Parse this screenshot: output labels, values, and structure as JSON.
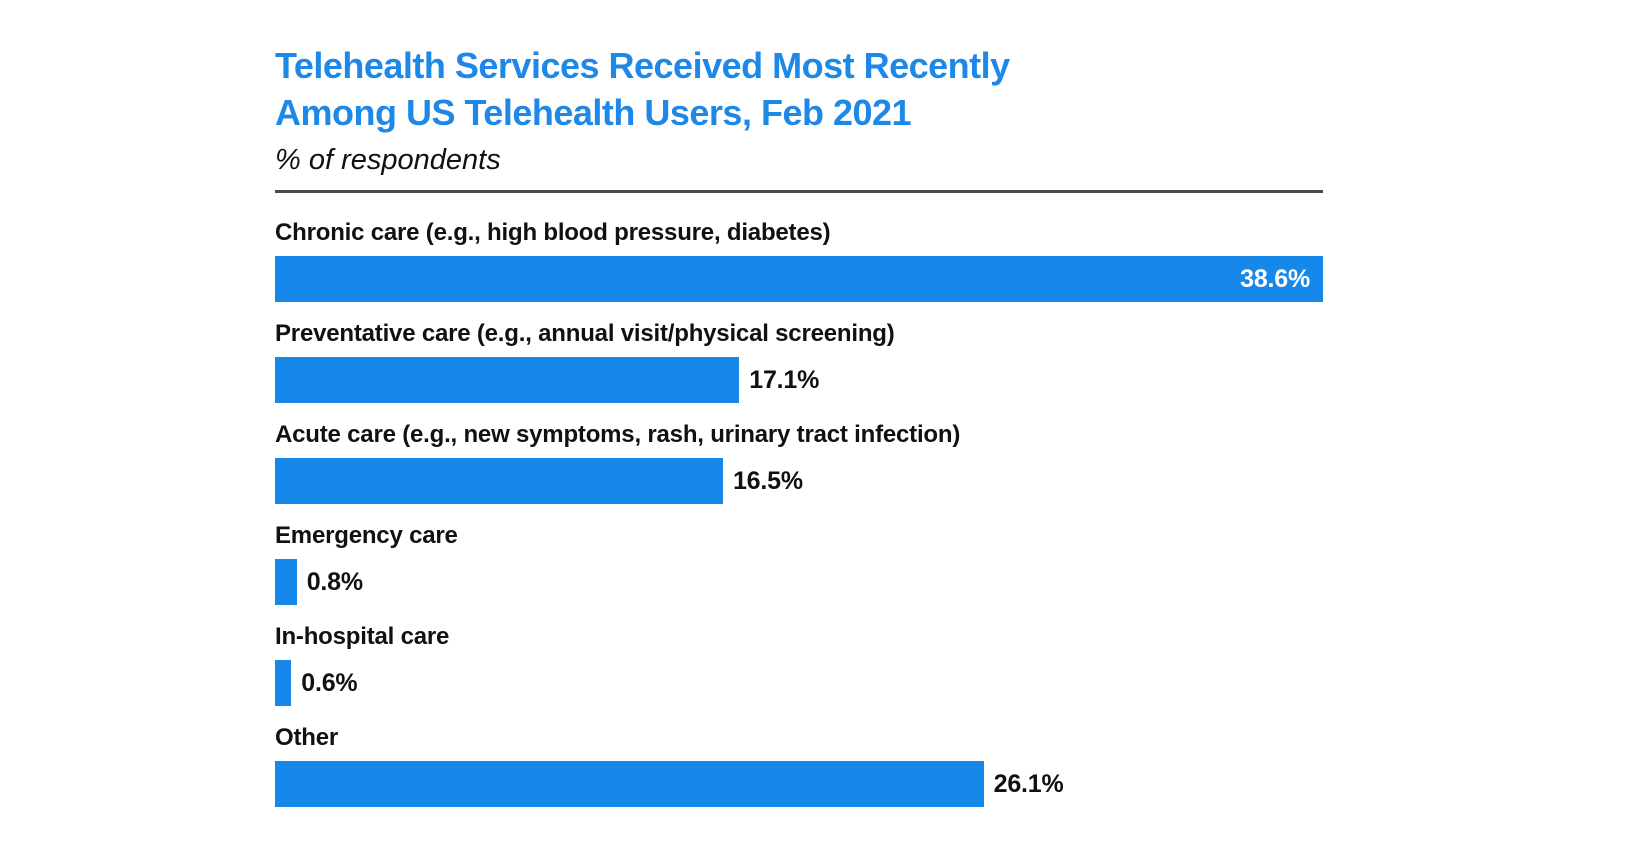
{
  "header": {
    "title_line1": "Telehealth Services Received Most Recently",
    "title_line2": "Among US Telehealth Users, Feb 2021",
    "subtitle": "% of respondents"
  },
  "chart_data": {
    "type": "bar",
    "orientation": "horizontal",
    "title": "Telehealth Services Received Most Recently Among US Telehealth Users, Feb 2021",
    "subtitle": "% of respondents",
    "categories": [
      "Chronic care (e.g., high blood pressure, diabetes)",
      "Preventative care (e.g., annual visit/physical screening)",
      "Acute care (e.g., new symptoms, rash, urinary tract infection)",
      "Emergency care",
      "In-hospital care",
      "Other"
    ],
    "values": [
      38.6,
      17.1,
      16.5,
      0.8,
      0.6,
      26.1
    ],
    "value_labels": [
      "38.6%",
      "17.1%",
      "16.5%",
      "0.8%",
      "0.6%",
      "26.1%"
    ],
    "xlim": [
      0,
      38.6
    ],
    "grid": false,
    "legend": "none",
    "bar_color": "#1588e9",
    "title_color": "#1e88e8",
    "value_label_color_inside": "#ffffff",
    "value_label_color_outside": "#111111"
  }
}
